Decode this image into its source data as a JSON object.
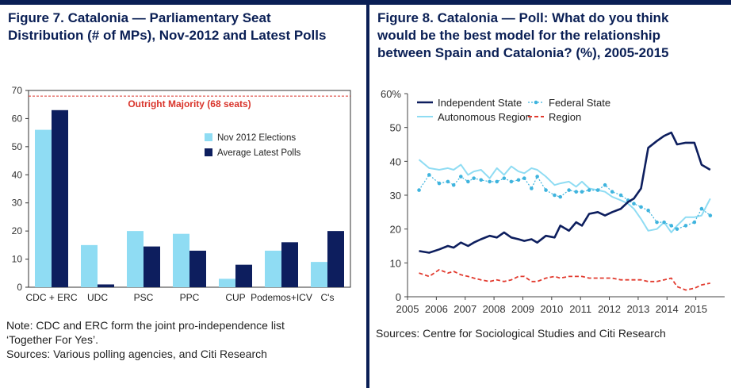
{
  "figure7": {
    "title_lines": [
      "Figure 7. Catalonia — Parliamentary Seat",
      "Distribution (# of MPs), Nov-2012 and Latest Polls"
    ],
    "majority_label": "Outright Majority (68 seats)",
    "note_lines": [
      "Note: CDC and ERC form the joint pro-independence list",
      "‘Together For Yes’.",
      "Sources: Various polling agencies, and Citi Research"
    ]
  },
  "figure8": {
    "title_lines": [
      "Figure 8. Catalonia — Poll: What do you think",
      "would be the best model for the relationship",
      "between Spain and Catalonia? (%), 2005-2015"
    ],
    "source": "Sources: Centre for Sociological Studies and Citi Research"
  },
  "chart_data": [
    {
      "type": "bar",
      "title": "Figure 7. Catalonia — Parliamentary Seat Distribution (# of MPs), Nov-2012 and Latest Polls",
      "categories": [
        "CDC + ERC",
        "UDC",
        "PSC",
        "PPC",
        "CUP",
        "Podemos+ICV",
        "C's"
      ],
      "series": [
        {
          "name": "Nov 2012 Elections",
          "values": [
            56,
            15,
            20,
            19,
            3,
            13,
            9
          ],
          "color": "#8fdcf3"
        },
        {
          "name": "Average Latest Polls",
          "values": [
            63,
            1,
            14.5,
            13,
            8,
            16,
            20
          ],
          "color": "#0d1e5e"
        }
      ],
      "reference_line": {
        "value": 68,
        "label": "Outright Majority (68 seats)",
        "color": "#d9342b"
      },
      "ylim": [
        0,
        70
      ],
      "yticks": [
        0,
        10,
        20,
        30,
        40,
        50,
        60,
        70
      ],
      "xlabel": "",
      "ylabel": "",
      "legend_position": "right-center",
      "grid": false
    },
    {
      "type": "line",
      "title": "Figure 8. Catalonia — Poll: What do you think would be the best model for the relationship between Spain and Catalonia? (%), 2005-2015",
      "xlim": [
        2005,
        2016
      ],
      "ylim": [
        0,
        60
      ],
      "xticks": [
        "2005",
        "2006",
        "2007",
        "2008",
        "2009",
        "2010",
        "2011",
        "2012",
        "2013",
        "2014",
        "2015"
      ],
      "yticks": [
        "0",
        "10",
        "20",
        "30",
        "40",
        "50",
        "60%"
      ],
      "xlabel": "",
      "ylabel": "",
      "legend_position": "top-left",
      "grid": false,
      "series": [
        {
          "name": "Independent State",
          "color": "#0d1e5e",
          "style": "solid-thick",
          "x": [
            2005.4,
            2005.75,
            2006.1,
            2006.4,
            2006.6,
            2006.85,
            2007.1,
            2007.3,
            2007.55,
            2007.85,
            2008.1,
            2008.35,
            2008.6,
            2008.85,
            2009.05,
            2009.3,
            2009.5,
            2009.8,
            2010.1,
            2010.3,
            2010.6,
            2010.85,
            2011.05,
            2011.3,
            2011.6,
            2011.85,
            2012.1,
            2012.4,
            2012.65,
            2012.85,
            2013.1,
            2013.35,
            2013.65,
            2013.9,
            2014.15,
            2014.35,
            2014.65,
            2014.95,
            2015.2,
            2015.5
          ],
          "y": [
            13.5,
            13,
            14,
            15,
            14.5,
            16,
            15,
            16,
            17,
            18,
            17.5,
            19,
            17.5,
            17,
            16.5,
            17,
            16,
            18,
            17.5,
            21,
            19.5,
            22,
            21,
            24.5,
            25,
            24,
            25,
            26,
            28,
            29,
            32,
            44,
            46,
            47.5,
            48.5,
            45,
            45.5,
            45.5,
            39,
            37.5
          ]
        },
        {
          "name": "Federal State",
          "color": "#3fb4de",
          "style": "dotted-markers",
          "x": [
            2005.4,
            2005.75,
            2006.1,
            2006.4,
            2006.6,
            2006.85,
            2007.1,
            2007.3,
            2007.55,
            2007.85,
            2008.1,
            2008.35,
            2008.6,
            2008.85,
            2009.05,
            2009.3,
            2009.5,
            2009.8,
            2010.1,
            2010.3,
            2010.6,
            2010.85,
            2011.05,
            2011.3,
            2011.6,
            2011.85,
            2012.1,
            2012.4,
            2012.65,
            2012.85,
            2013.1,
            2013.35,
            2013.65,
            2013.9,
            2014.15,
            2014.35,
            2014.65,
            2014.95,
            2015.2,
            2015.5
          ],
          "y": [
            31.5,
            36,
            33.5,
            34,
            33,
            35.5,
            34,
            35,
            34.5,
            34,
            34,
            35,
            34,
            34.5,
            35,
            32,
            35.5,
            31.5,
            30,
            29.5,
            31.5,
            31,
            31,
            31.5,
            31.5,
            33,
            31,
            30,
            28.5,
            27.5,
            26.5,
            25.5,
            22,
            22,
            21,
            20,
            21,
            22,
            26,
            24
          ]
        },
        {
          "name": "Autonomous Region",
          "color": "#8fdcf3",
          "style": "solid",
          "x": [
            2005.4,
            2005.75,
            2006.1,
            2006.4,
            2006.6,
            2006.85,
            2007.1,
            2007.3,
            2007.55,
            2007.85,
            2008.1,
            2008.35,
            2008.6,
            2008.85,
            2009.05,
            2009.3,
            2009.5,
            2009.8,
            2010.1,
            2010.3,
            2010.6,
            2010.85,
            2011.05,
            2011.3,
            2011.6,
            2011.85,
            2012.1,
            2012.4,
            2012.65,
            2012.85,
            2013.1,
            2013.35,
            2013.65,
            2013.9,
            2014.15,
            2014.35,
            2014.65,
            2014.95,
            2015.2,
            2015.5
          ],
          "y": [
            40.5,
            38,
            37.5,
            38,
            37.5,
            39,
            36,
            37,
            37.5,
            35,
            38,
            36,
            38.5,
            37,
            36.5,
            38,
            37.5,
            35.5,
            33,
            33.5,
            34,
            32.5,
            34,
            32,
            31.5,
            31,
            29.5,
            28.5,
            27.5,
            26,
            23,
            19.5,
            20,
            22,
            19,
            21,
            23.5,
            23.5,
            24,
            29
          ]
        },
        {
          "name": "Region",
          "color": "#e23b2f",
          "style": "dashed",
          "x": [
            2005.4,
            2005.75,
            2006.1,
            2006.4,
            2006.6,
            2006.85,
            2007.1,
            2007.3,
            2007.55,
            2007.85,
            2008.1,
            2008.35,
            2008.6,
            2008.85,
            2009.05,
            2009.3,
            2009.5,
            2009.8,
            2010.1,
            2010.3,
            2010.6,
            2010.85,
            2011.05,
            2011.3,
            2011.6,
            2011.85,
            2012.1,
            2012.4,
            2012.65,
            2012.85,
            2013.1,
            2013.35,
            2013.65,
            2013.9,
            2014.15,
            2014.35,
            2014.65,
            2014.95,
            2015.2,
            2015.5
          ],
          "y": [
            7,
            6,
            8,
            7,
            7.5,
            6.5,
            6,
            5.5,
            5,
            4.5,
            5,
            4.5,
            5,
            6,
            6,
            4.5,
            4.5,
            5.5,
            6,
            5.5,
            6,
            6,
            6,
            5.5,
            5.5,
            5.5,
            5.5,
            5,
            5,
            5,
            5,
            4.5,
            4.5,
            5,
            5.5,
            3,
            2,
            2.5,
            3.5,
            4
          ]
        }
      ]
    }
  ]
}
